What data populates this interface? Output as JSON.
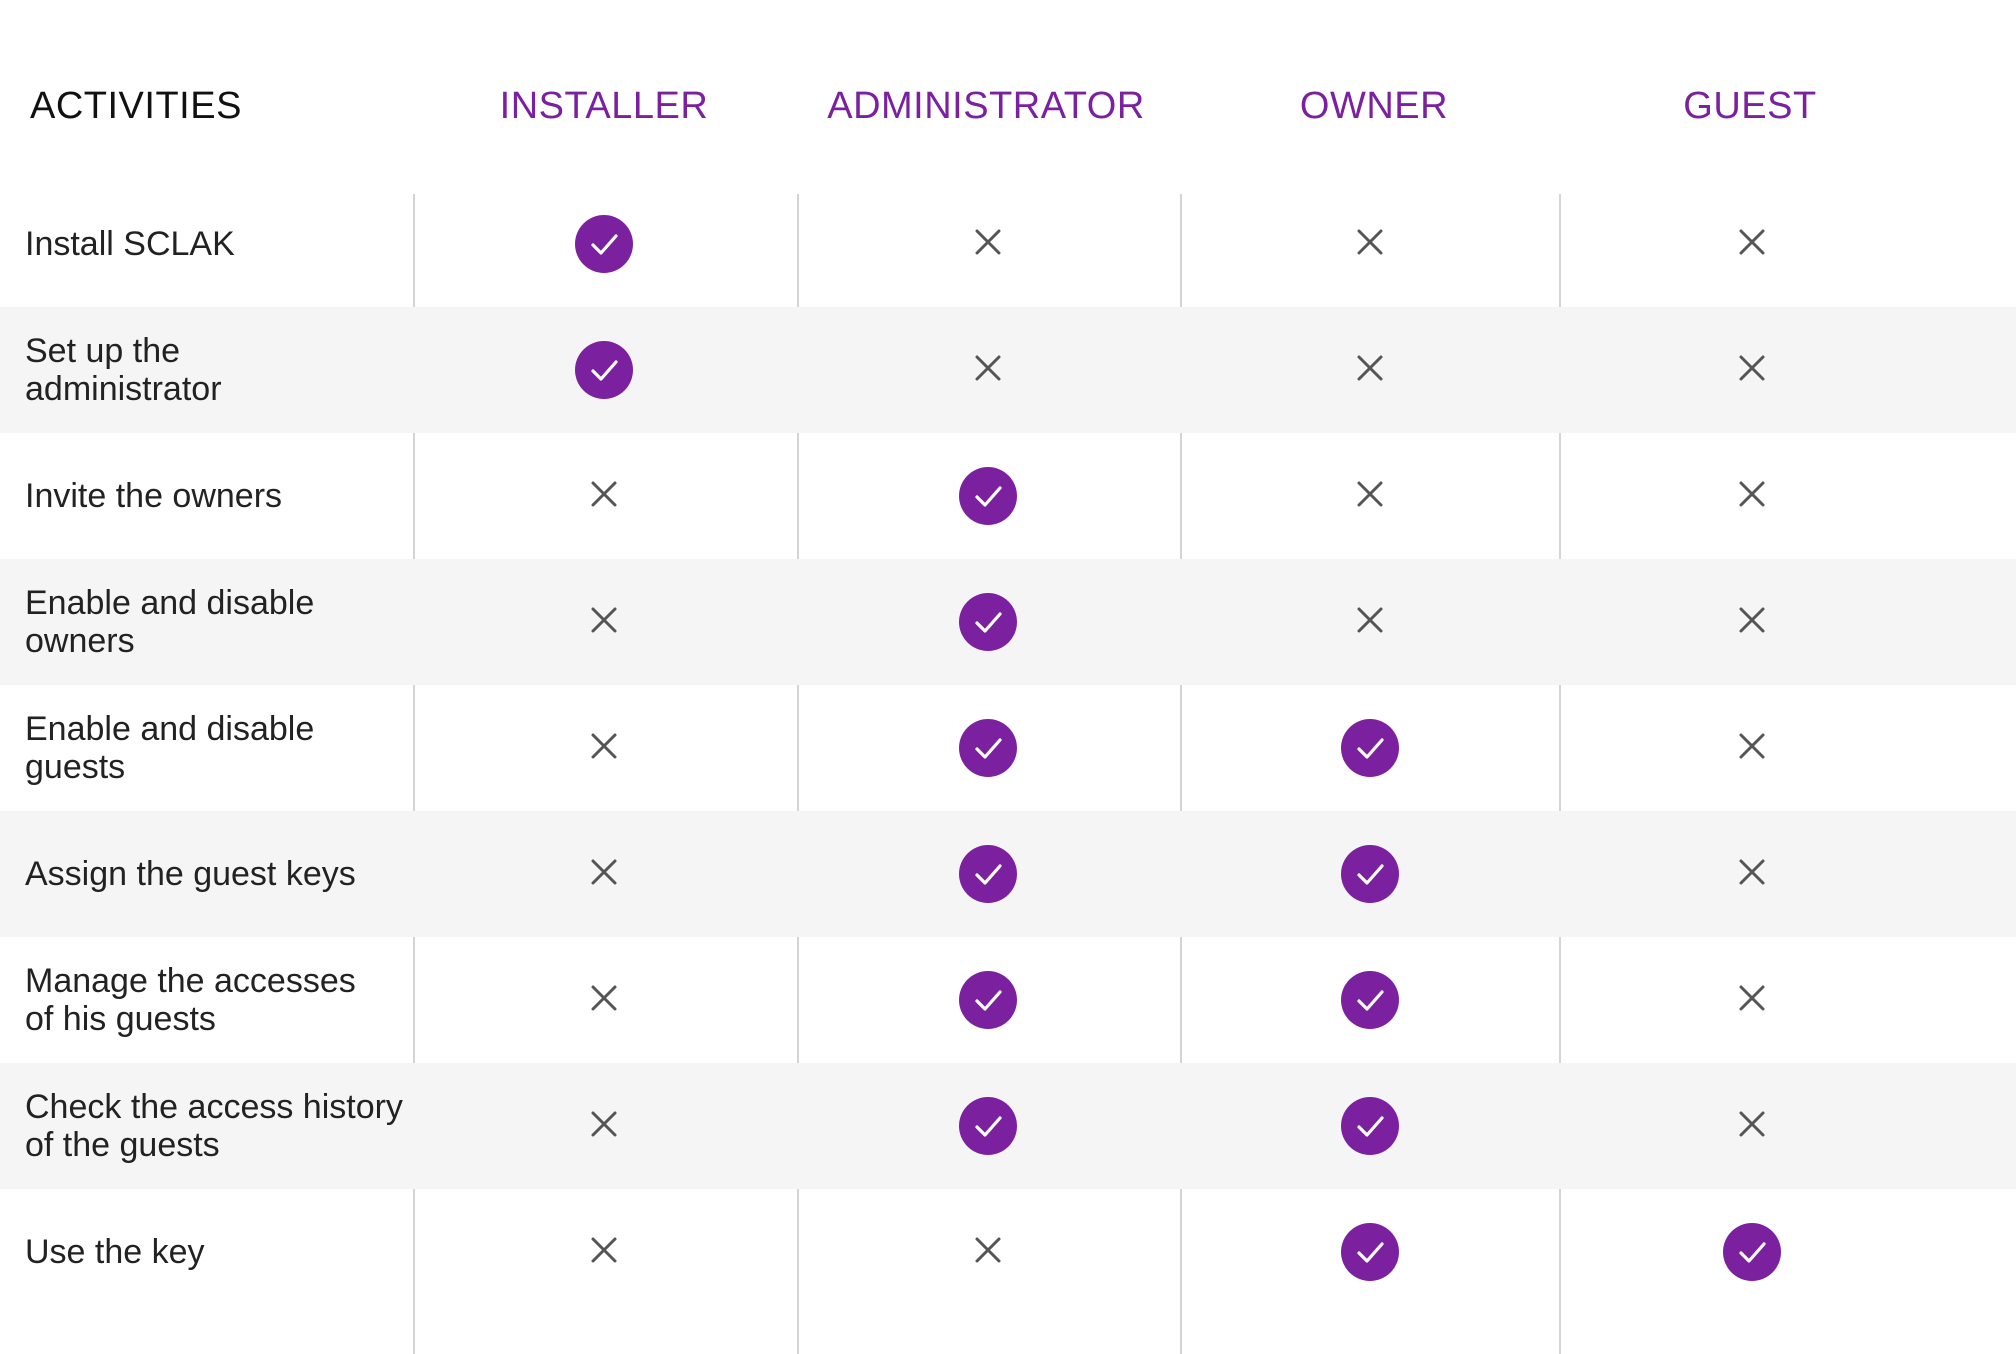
{
  "header": {
    "activities": "ACTIVITIES",
    "roles": [
      "INSTALLER",
      "ADMINISTRATOR",
      "OWNER",
      "GUEST"
    ]
  },
  "colors": {
    "accent": "#7b21a0",
    "cross": "#555555",
    "alt_row": "#f5f5f5",
    "divider": "#d4d4d4"
  },
  "icons": {
    "allowed": "check-icon",
    "denied": "cross-icon"
  },
  "rows": [
    {
      "activity": "Install SCLAK",
      "permissions": [
        true,
        false,
        false,
        false
      ]
    },
    {
      "activity": "Set up the\nadministrator",
      "permissions": [
        true,
        false,
        false,
        false
      ]
    },
    {
      "activity": "Invite the owners",
      "permissions": [
        false,
        true,
        false,
        false
      ]
    },
    {
      "activity": "Enable and disable\nowners",
      "permissions": [
        false,
        true,
        false,
        false
      ]
    },
    {
      "activity": "Enable and disable guests",
      "permissions": [
        false,
        true,
        true,
        false
      ]
    },
    {
      "activity": "Assign the guest keys",
      "permissions": [
        false,
        true,
        true,
        false
      ]
    },
    {
      "activity": "Manage the accesses\nof his guests",
      "permissions": [
        false,
        true,
        true,
        false
      ]
    },
    {
      "activity": "Check the access history\nof the guests",
      "permissions": [
        false,
        true,
        true,
        false
      ]
    },
    {
      "activity": "Use the key",
      "permissions": [
        false,
        false,
        true,
        true
      ]
    }
  ]
}
